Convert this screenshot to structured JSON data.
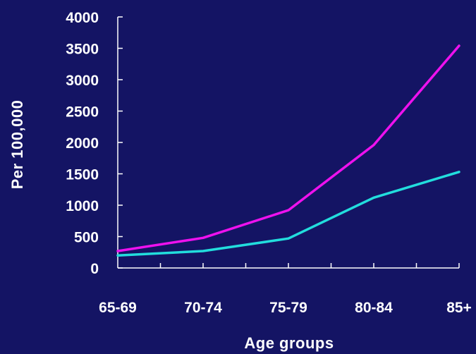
{
  "colors": {
    "background": "#141464",
    "axis": "#ffffff",
    "text": "#ffffff"
  },
  "chart_data": {
    "type": "line",
    "title": "",
    "xlabel": "Age groups",
    "ylabel": "Per 100,000",
    "categories": [
      "65-69",
      "70-74",
      "75-79",
      "80-84",
      "85+"
    ],
    "ylim": [
      0,
      4000
    ],
    "yticks": [
      "0",
      "500",
      "1000",
      "1500",
      "2000",
      "2500",
      "3000",
      "3500",
      "4000"
    ],
    "grid": false,
    "legend": "none",
    "series": [
      {
        "color": "#ee11ee",
        "values": [
          270,
          480,
          920,
          1960,
          3540
        ]
      },
      {
        "color": "#22dddd",
        "values": [
          200,
          270,
          470,
          1120,
          1530
        ]
      }
    ]
  }
}
